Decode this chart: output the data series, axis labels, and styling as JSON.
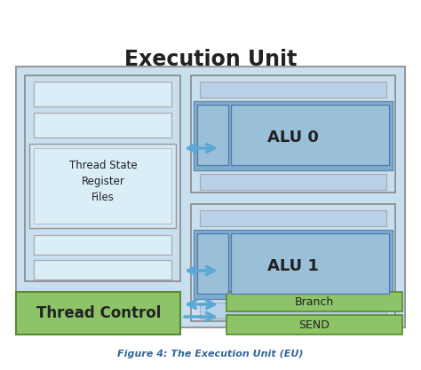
{
  "title": "Execution Unit",
  "caption": "Figure 4: The Execution Unit (EU)",
  "light_blue_outer": "#c8dff0",
  "light_blue_bar": "#b8d4ea",
  "mid_blue": "#7aaed0",
  "alu_inner": "#8ab4d0",
  "alu_cell": "#7aaed0",
  "light_green": "#8dc468",
  "green_edge": "#5a8a30",
  "outer_edge": "#888888",
  "inner_edge": "#6688aa",
  "arrow_color": "#5ba8d4",
  "thread_control_label": "Thread Control",
  "alu0_label": "ALU 0",
  "alu1_label": "ALU 1",
  "branch_label": "Branch",
  "send_label": "SEND",
  "register_label": "Thread State\nRegister\nFiles"
}
